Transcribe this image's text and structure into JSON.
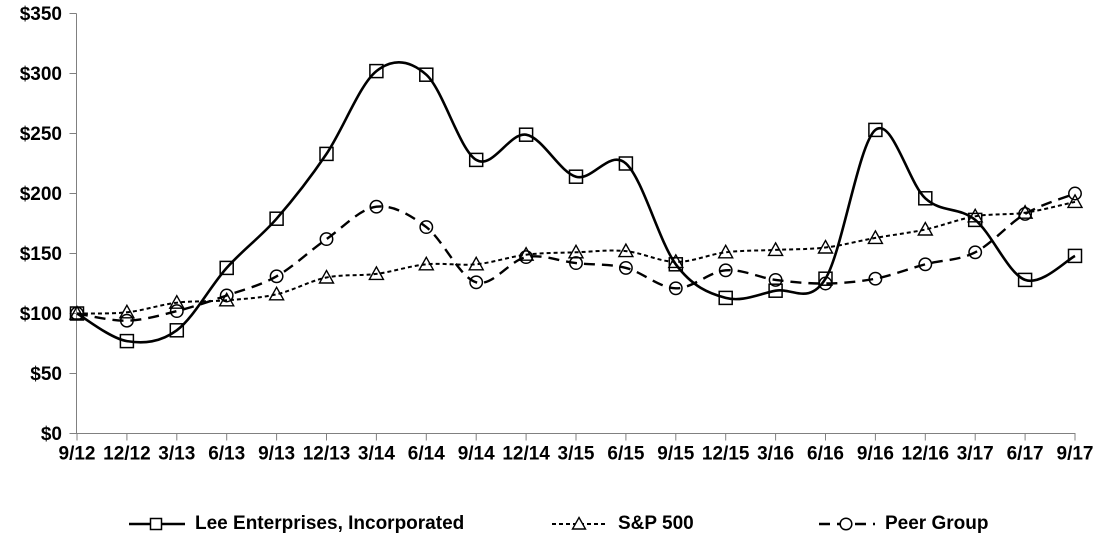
{
  "chart_data": {
    "type": "line",
    "title": "",
    "x_categories": [
      "9/12",
      "12/12",
      "3/13",
      "6/13",
      "9/13",
      "12/13",
      "3/14",
      "6/14",
      "9/14",
      "12/14",
      "3/15",
      "6/15",
      "9/15",
      "12/15",
      "3/16",
      "6/16",
      "9/16",
      "12/16",
      "3/17",
      "6/17",
      "9/17"
    ],
    "y_axis": {
      "min": 0,
      "max": 350,
      "step": 50,
      "labels": [
        "$0",
        "$50",
        "$100",
        "$150",
        "$200",
        "$250",
        "$300",
        "$350"
      ]
    },
    "series": [
      {
        "name": "Lee Enterprises, Incorporated",
        "marker": "square",
        "line_style": "solid",
        "values": [
          100,
          77,
          86,
          138,
          179,
          233,
          302,
          299,
          228,
          249,
          214,
          225,
          141,
          113,
          119,
          129,
          253,
          196,
          178,
          128,
          148
        ]
      },
      {
        "name": "S&P 500",
        "marker": "triangle",
        "line_style": "dotted",
        "values": [
          100,
          101,
          109,
          111,
          116,
          130,
          133,
          141,
          141,
          149,
          151,
          152,
          143,
          151,
          153,
          155,
          163,
          170,
          181,
          184,
          193
        ]
      },
      {
        "name": "Peer Group",
        "marker": "circle",
        "line_style": "dashed",
        "values": [
          100,
          94,
          102,
          115,
          131,
          162,
          189,
          172,
          126,
          147,
          142,
          138,
          121,
          136,
          128,
          125,
          129,
          141,
          151,
          183,
          200
        ]
      }
    ],
    "legend_position": "bottom",
    "grid": false,
    "colors": {
      "line": "#000000",
      "axis": "#808080",
      "background": "#ffffff",
      "text": "#000000"
    }
  }
}
